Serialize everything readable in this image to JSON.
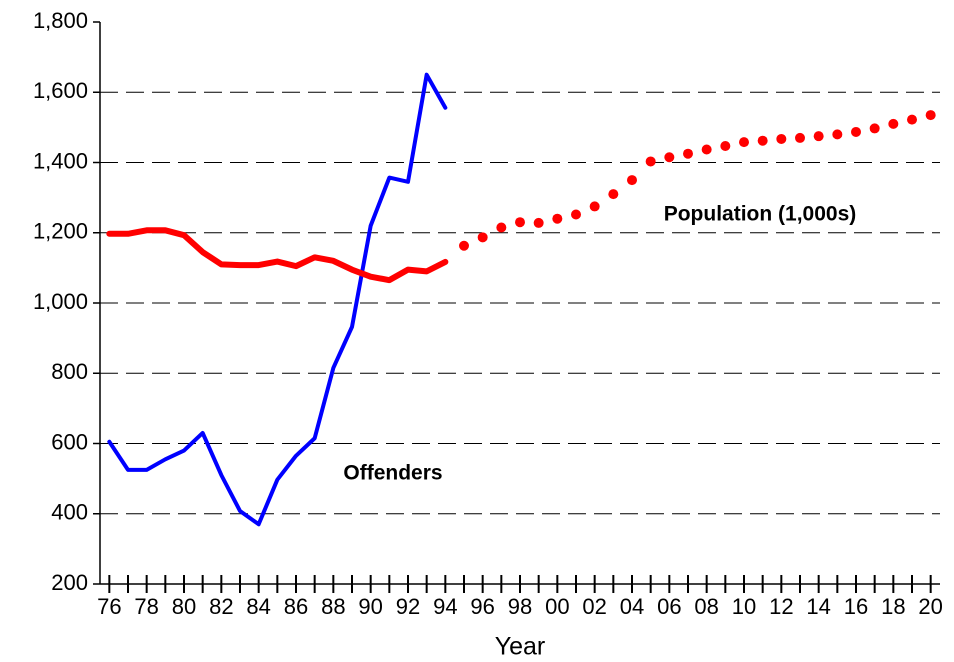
{
  "chart_data": {
    "type": "line",
    "xlabel": "Year",
    "categories": [
      "76",
      null,
      "78",
      null,
      "80",
      null,
      "82",
      null,
      "84",
      null,
      "86",
      null,
      "88",
      null,
      "90",
      null,
      "92",
      null,
      "94",
      null,
      "96",
      null,
      "98",
      null,
      "00",
      null,
      "02",
      null,
      "04",
      null,
      "06",
      null,
      "08",
      null,
      "10",
      null,
      "12",
      null,
      "14",
      null,
      "16",
      null,
      "18",
      null,
      "20"
    ],
    "series": [
      {
        "name": "Offenders",
        "color": "#0000ff",
        "style": "solid",
        "values": [
          605,
          525,
          525,
          555,
          580,
          630,
          510,
          408,
          370,
          497,
          565,
          615,
          815,
          932,
          1220,
          1357,
          1345,
          1650,
          1556,
          null,
          null,
          null,
          null,
          null,
          null,
          null,
          null,
          null,
          null,
          null,
          null,
          null,
          null,
          null,
          null,
          null,
          null,
          null,
          null,
          null,
          null,
          null,
          null,
          null,
          null
        ]
      },
      {
        "name": "Population (1,000s)",
        "color": "#ff0000",
        "style": "solid",
        "values": [
          1197,
          1197,
          1207,
          1207,
          1193,
          1145,
          1110,
          1108,
          1108,
          1118,
          1105,
          1130,
          1120,
          1095,
          1075,
          1065,
          1095,
          1090,
          1117,
          null,
          null,
          null,
          null,
          null,
          null,
          null,
          null,
          null,
          null,
          null,
          null,
          null,
          null,
          null,
          null,
          null,
          null,
          null,
          null,
          null,
          null,
          null,
          null,
          null,
          null
        ]
      },
      {
        "color": "#ff0000",
        "style": "dotted",
        "values": [
          null,
          null,
          null,
          null,
          null,
          null,
          null,
          null,
          null,
          null,
          null,
          null,
          null,
          null,
          null,
          null,
          null,
          null,
          null,
          1163,
          1187,
          1215,
          1230,
          1228,
          1240,
          1252,
          1275,
          1310,
          1350,
          1403,
          1415,
          1425,
          1437,
          1447,
          1458,
          1462,
          1467,
          1470,
          1475,
          1480,
          1487,
          1497,
          1510,
          1522,
          1535
        ]
      }
    ],
    "ylim": [
      200,
      1800
    ],
    "yticks": [
      200,
      400,
      600,
      800,
      {
        "value": 1000,
        "label": "1,000"
      },
      {
        "value": 1200,
        "label": "1,200"
      },
      {
        "value": 1400,
        "label": "1,400"
      },
      {
        "value": 1600,
        "label": "1,600"
      },
      {
        "value": 1800,
        "label": "1,800"
      }
    ],
    "grid": true
  }
}
